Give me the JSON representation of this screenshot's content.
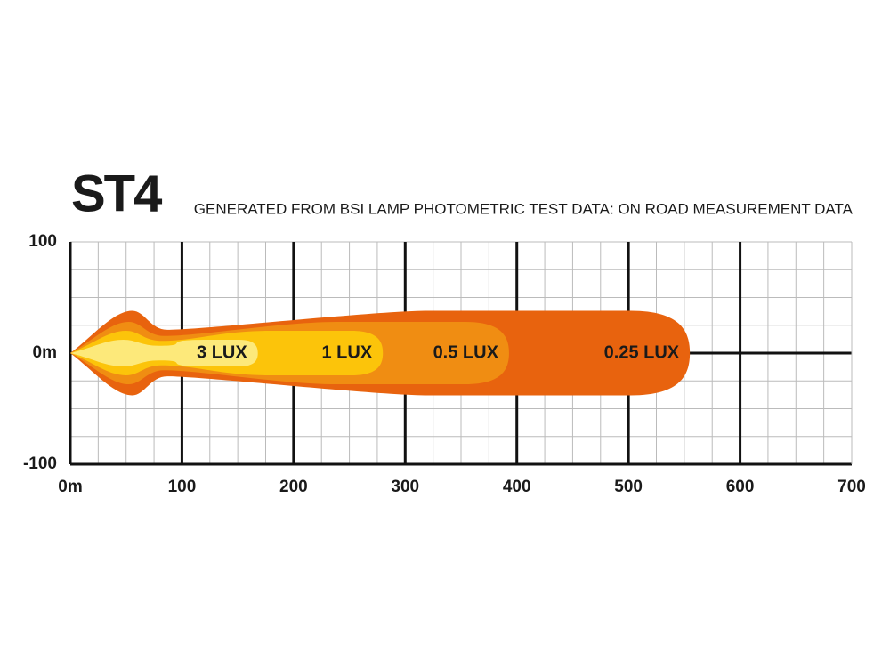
{
  "chart_data": {
    "type": "beam",
    "title": "ST4",
    "subtitle": "GENERATED FROM BSI LAMP PHOTOMETRIC TEST DATA: ON ROAD MEASUREMENT DATA",
    "xlim": [
      0,
      700
    ],
    "ylim": [
      -100,
      100
    ],
    "xticks": [
      {
        "value": 0,
        "label": "0m"
      },
      100,
      200,
      300,
      400,
      500,
      600,
      700
    ],
    "yticks": [
      100,
      {
        "value": 0,
        "label": "0m"
      },
      -100
    ],
    "grid": true,
    "series": [
      {
        "name": "0.25 LUX",
        "color": "#e8630e",
        "reach": 555,
        "half_width": 38
      },
      {
        "name": "0.5 LUX",
        "color": "#f08d12",
        "reach": 393,
        "half_width": 28
      },
      {
        "name": "1 LUX",
        "color": "#fcc40a",
        "reach": 280,
        "half_width": 20
      },
      {
        "name": "3 LUX",
        "color": "#fde97a",
        "reach": 168,
        "half_width": 12
      }
    ]
  }
}
